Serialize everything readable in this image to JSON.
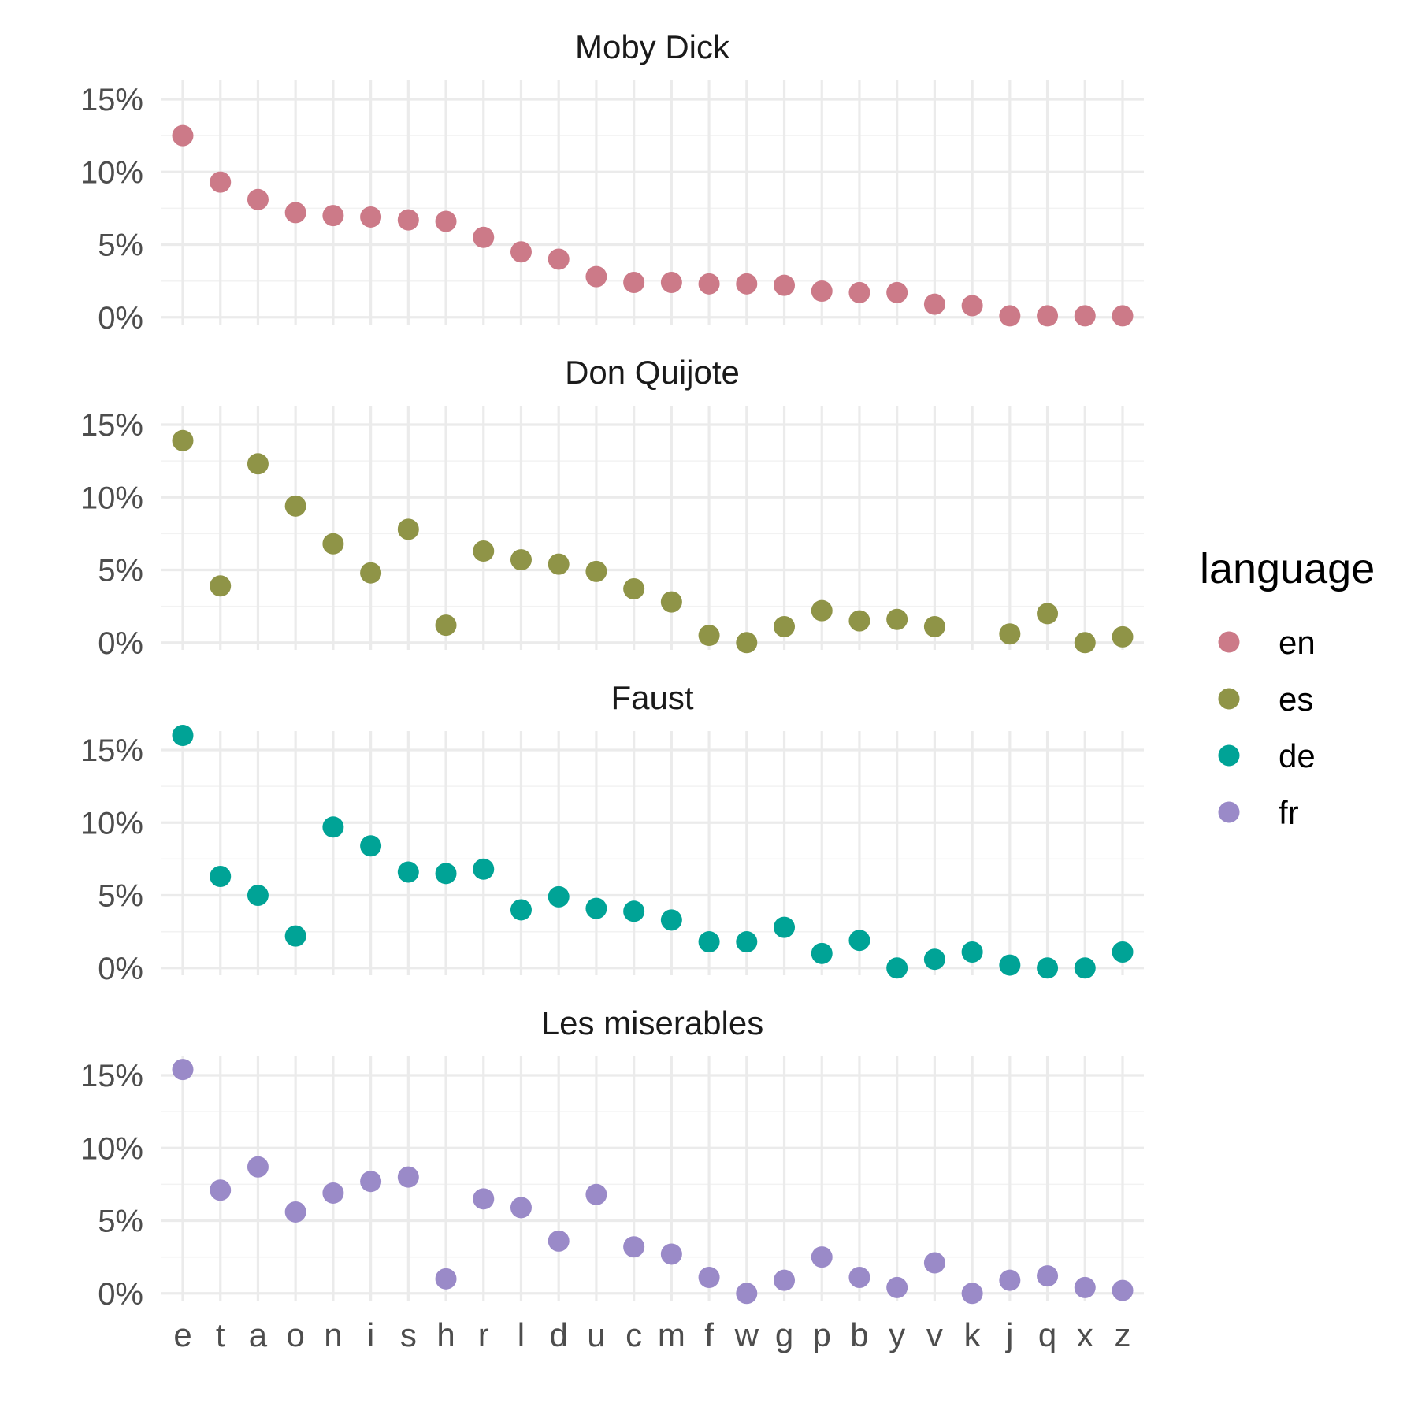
{
  "chart_data": {
    "type": "scatter",
    "categories": [
      "e",
      "t",
      "a",
      "o",
      "n",
      "i",
      "s",
      "h",
      "r",
      "l",
      "d",
      "u",
      "c",
      "m",
      "f",
      "w",
      "g",
      "p",
      "b",
      "y",
      "v",
      "k",
      "j",
      "q",
      "x",
      "z"
    ],
    "y_ticks": [
      {
        "value": 0,
        "label": "0%"
      },
      {
        "value": 5,
        "label": "5%"
      },
      {
        "value": 10,
        "label": "10%"
      },
      {
        "value": 15,
        "label": "15%"
      }
    ],
    "ylim": [
      -0.5,
      16.3
    ],
    "legend": {
      "title": "language",
      "placement": "right",
      "entries": [
        {
          "key": "en",
          "label": "en",
          "color": "#CC7A88"
        },
        {
          "key": "es",
          "label": "es",
          "color": "#8F9447"
        },
        {
          "key": "de",
          "label": "de",
          "color": "#00A396"
        },
        {
          "key": "fr",
          "label": "fr",
          "color": "#9A8AC8"
        }
      ]
    },
    "facets": [
      {
        "title": "Moby Dick",
        "language": "en",
        "values": [
          12.5,
          9.3,
          8.1,
          7.2,
          7.0,
          6.9,
          6.7,
          6.6,
          5.5,
          4.5,
          4.0,
          2.8,
          2.4,
          2.4,
          2.3,
          2.3,
          2.2,
          1.8,
          1.7,
          1.7,
          0.9,
          0.8,
          0.1,
          0.1,
          0.1,
          0.1
        ]
      },
      {
        "title": "Don Quijote",
        "language": "es",
        "values": [
          13.9,
          3.9,
          12.3,
          9.4,
          6.8,
          4.8,
          7.8,
          1.2,
          6.3,
          5.7,
          5.4,
          4.9,
          3.7,
          2.8,
          0.5,
          0.0,
          1.1,
          2.2,
          1.5,
          1.6,
          1.1,
          null,
          0.6,
          2.0,
          0.0,
          0.4
        ]
      },
      {
        "title": "Faust",
        "language": "de",
        "values": [
          16.0,
          6.3,
          5.0,
          2.2,
          9.7,
          8.4,
          6.6,
          6.5,
          6.8,
          4.0,
          4.9,
          4.1,
          3.9,
          3.3,
          1.8,
          1.8,
          2.8,
          1.0,
          1.9,
          0.0,
          0.6,
          1.1,
          0.2,
          0.0,
          0.0,
          1.1
        ]
      },
      {
        "title": "Les miserables",
        "language": "fr",
        "values": [
          15.4,
          7.1,
          8.7,
          5.6,
          6.9,
          7.7,
          8.0,
          1.0,
          6.5,
          5.9,
          3.6,
          6.8,
          3.2,
          2.7,
          1.1,
          0.0,
          0.9,
          2.5,
          1.1,
          0.4,
          2.1,
          0.0,
          0.9,
          1.2,
          0.4,
          0.2
        ]
      }
    ]
  }
}
